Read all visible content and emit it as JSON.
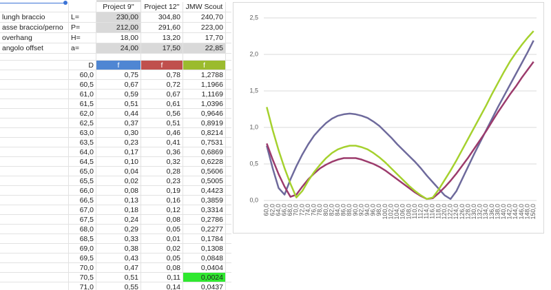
{
  "sheet": {
    "columns": [
      "Project 9''",
      "Project 12''",
      "JMW Scout"
    ],
    "params": [
      {
        "label": "lungh braccio",
        "symbol": "L=",
        "values": [
          "230,00",
          "304,80",
          "240,70"
        ]
      },
      {
        "label": "asse braccio/perno",
        "symbol": "P=",
        "values": [
          "212,00",
          "291,60",
          "223,00"
        ]
      },
      {
        "label": "overhang",
        "symbol": "H=",
        "values": [
          "18,00",
          "13,20",
          "17,70"
        ]
      },
      {
        "label": "angolo offset",
        "symbol": "a=",
        "values": [
          "24,00",
          "17,50",
          "22,85"
        ]
      }
    ],
    "table_header": [
      "D",
      "f",
      "f",
      "f"
    ],
    "rows": [
      [
        "60,0",
        "0,75",
        "0,78",
        "1,2788"
      ],
      [
        "60,5",
        "0,67",
        "0,72",
        "1,1966"
      ],
      [
        "61,0",
        "0,59",
        "0,67",
        "1,1169"
      ],
      [
        "61,5",
        "0,51",
        "0,61",
        "1,0396"
      ],
      [
        "62,0",
        "0,44",
        "0,56",
        "0,9646"
      ],
      [
        "62,5",
        "0,37",
        "0,51",
        "0,8919"
      ],
      [
        "63,0",
        "0,30",
        "0,46",
        "0,8214"
      ],
      [
        "63,5",
        "0,23",
        "0,41",
        "0,7531"
      ],
      [
        "64,0",
        "0,17",
        "0,36",
        "0,6869"
      ],
      [
        "64,5",
        "0,10",
        "0,32",
        "0,6228"
      ],
      [
        "65,0",
        "0,04",
        "0,28",
        "0,5606"
      ],
      [
        "65,5",
        "0,02",
        "0,23",
        "0,5005"
      ],
      [
        "66,0",
        "0,08",
        "0,19",
        "0,4423"
      ],
      [
        "66,5",
        "0,13",
        "0,16",
        "0,3859"
      ],
      [
        "67,0",
        "0,18",
        "0,12",
        "0,3314"
      ],
      [
        "67,5",
        "0,24",
        "0,08",
        "0,2786"
      ],
      [
        "68,0",
        "0,29",
        "0,05",
        "0,2277"
      ],
      [
        "68,5",
        "0,33",
        "0,01",
        "0,1784"
      ],
      [
        "69,0",
        "0,38",
        "0,02",
        "0,1308"
      ],
      [
        "69,5",
        "0,43",
        "0,05",
        "0,0848"
      ],
      [
        "70,0",
        "0,47",
        "0,08",
        "0,0404"
      ],
      [
        "70,5",
        "0,51",
        "0,11",
        "0,0024"
      ],
      [
        "71,0",
        "0,55",
        "0,14",
        "0,0437"
      ]
    ]
  },
  "chart_data": {
    "type": "line",
    "categories": [
      "60,0",
      "62,0",
      "64,0",
      "66,0",
      "68,0",
      "70,0",
      "72,0",
      "74,0",
      "76,0",
      "78,0",
      "80,0",
      "82,0",
      "84,0",
      "86,0",
      "88,0",
      "90,0",
      "92,0",
      "94,0",
      "96,0",
      "98,0",
      "100,0",
      "102,0",
      "104,0",
      "106,0",
      "108,0",
      "110,0",
      "112,0",
      "114,0",
      "116,0",
      "118,0",
      "120,0",
      "122,0",
      "124,0",
      "126,0",
      "128,0",
      "130,0",
      "132,0",
      "134,0",
      "136,0",
      "138,0",
      "140,0",
      "142,0",
      "144,0",
      "146,0",
      "148,0",
      "150,0"
    ],
    "series": [
      {
        "color": "#6e6a9c",
        "values": [
          0.75,
          0.44,
          0.17,
          0.08,
          0.29,
          0.47,
          0.63,
          0.77,
          0.89,
          0.98,
          1.06,
          1.12,
          1.16,
          1.18,
          1.19,
          1.18,
          1.16,
          1.13,
          1.08,
          1.02,
          0.94,
          0.86,
          0.77,
          0.69,
          0.61,
          0.53,
          0.44,
          0.34,
          0.25,
          0.16,
          0.07,
          0.02,
          0.13,
          0.3,
          0.47,
          0.64,
          0.8,
          0.96,
          1.12,
          1.28,
          1.43,
          1.58,
          1.73,
          1.88,
          2.03,
          2.19
        ]
      },
      {
        "color": "#9c3b6c",
        "values": [
          0.78,
          0.56,
          0.36,
          0.19,
          0.05,
          0.08,
          0.19,
          0.29,
          0.37,
          0.44,
          0.49,
          0.53,
          0.56,
          0.58,
          0.58,
          0.58,
          0.56,
          0.53,
          0.5,
          0.46,
          0.41,
          0.35,
          0.29,
          0.23,
          0.17,
          0.11,
          0.06,
          0.02,
          0.03,
          0.1,
          0.18,
          0.27,
          0.37,
          0.48,
          0.59,
          0.71,
          0.83,
          0.95,
          1.08,
          1.21,
          1.33,
          1.45,
          1.56,
          1.68,
          1.79,
          1.9
        ]
      },
      {
        "color": "#a5d12e",
        "values": [
          1.2788,
          0.9646,
          0.6869,
          0.4423,
          0.2277,
          0.0404,
          0.13,
          0.27,
          0.39,
          0.49,
          0.58,
          0.65,
          0.7,
          0.73,
          0.75,
          0.75,
          0.73,
          0.7,
          0.65,
          0.59,
          0.52,
          0.44,
          0.36,
          0.28,
          0.2,
          0.13,
          0.07,
          0.02,
          0.04,
          0.15,
          0.28,
          0.41,
          0.55,
          0.7,
          0.85,
          1.0,
          1.15,
          1.3,
          1.46,
          1.61,
          1.76,
          1.9,
          2.02,
          2.13,
          2.23,
          2.32
        ]
      }
    ],
    "ylim": [
      0,
      2.5
    ],
    "yticks": [
      {
        "value": 0,
        "label": "0,0"
      },
      {
        "value": 0.5,
        "label": "0,5"
      },
      {
        "value": 1,
        "label": "1,0"
      },
      {
        "value": 1.5,
        "label": "1,5"
      },
      {
        "value": 2,
        "label": "2,0"
      },
      {
        "value": 2.5,
        "label": "2,5"
      }
    ],
    "grid": true
  }
}
